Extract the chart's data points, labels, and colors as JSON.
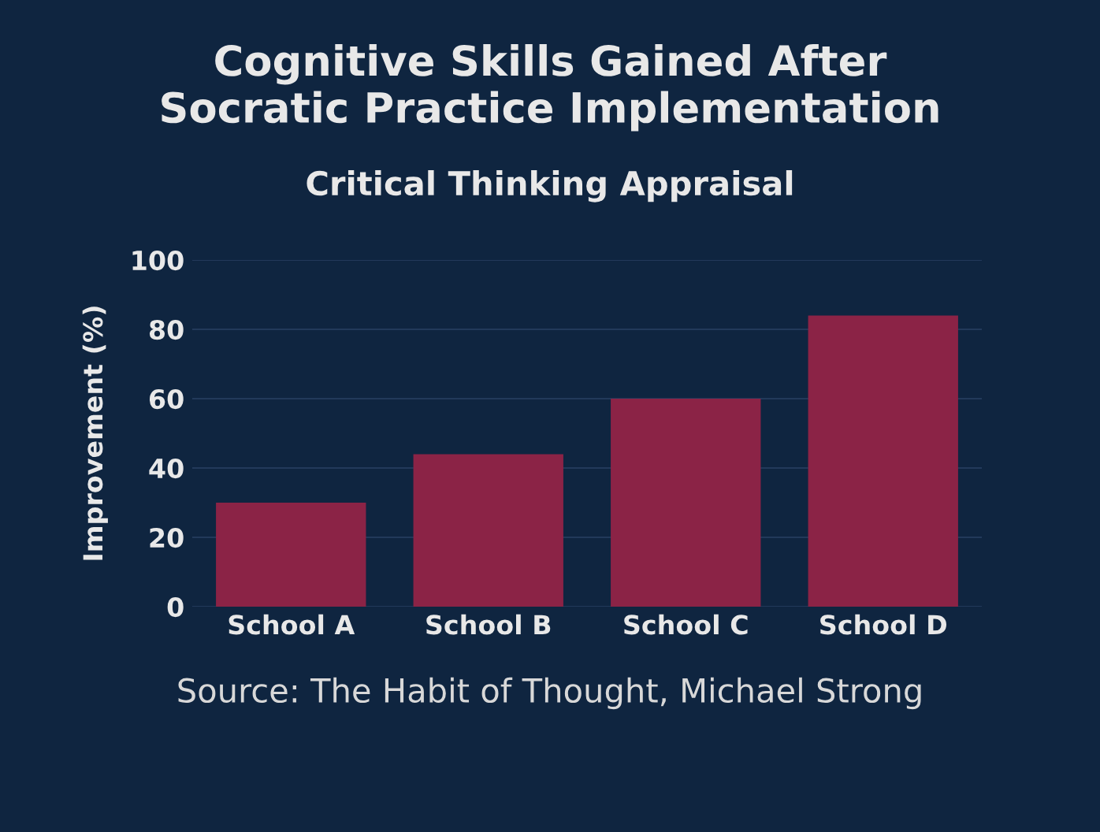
{
  "chart_data": {
    "type": "bar",
    "title": "Cognitive Skills Gained After\nSocratic Practice Implementation",
    "subtitle": "Critical Thinking Appraisal",
    "ylabel": "Improvement (%)",
    "categories": [
      "School A",
      "School B",
      "School C",
      "School D"
    ],
    "values": [
      30,
      44,
      60,
      84
    ],
    "color": "#8b2346",
    "ylim": [
      0,
      100
    ],
    "yticks": [
      0,
      20,
      40,
      60,
      80,
      100
    ],
    "grid": "y",
    "annotations": [
      "Source: The Habit of Thought, Michael Strong"
    ]
  }
}
